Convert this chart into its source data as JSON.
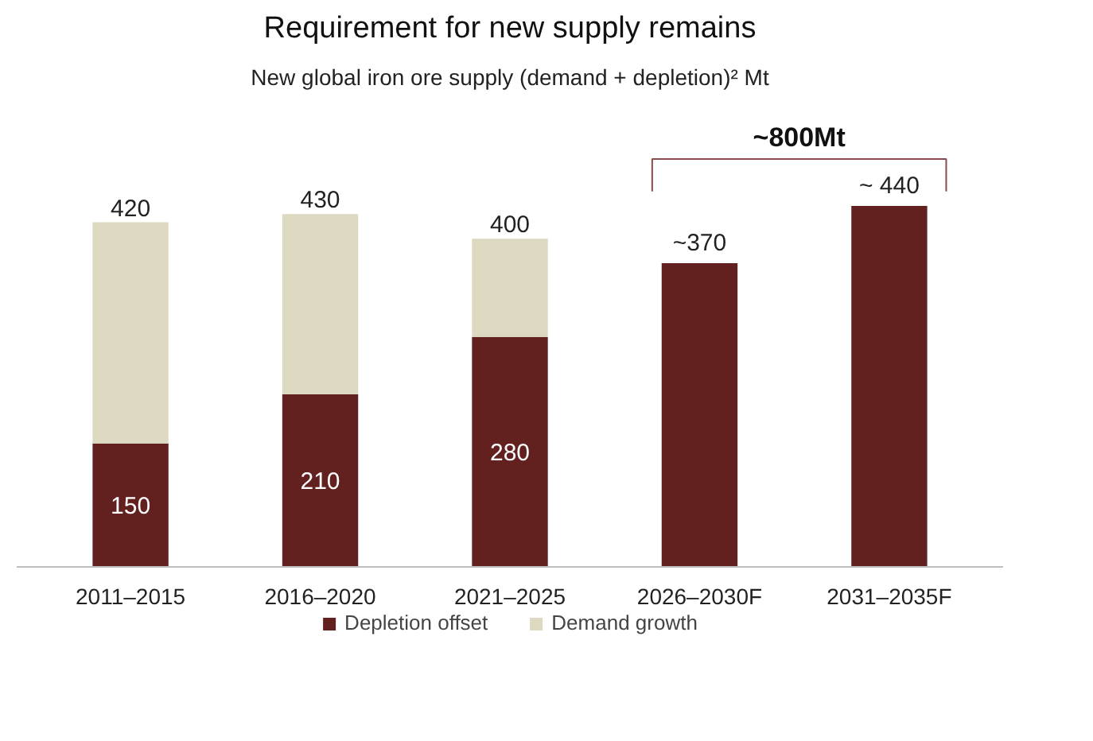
{
  "chart_data": {
    "type": "bar",
    "stacked": true,
    "title": "Requirement for new supply remains",
    "subtitle": "New global iron ore supply (demand + depletion)² Mt",
    "categories": [
      "2011–2015",
      "2016–2020",
      "2021–2025",
      "2026–2030F",
      "2031–2035F"
    ],
    "series": [
      {
        "name": "Depletion offset",
        "color": "#62201f",
        "values": [
          150,
          210,
          280,
          370,
          440
        ],
        "value_labels": [
          "150",
          "210",
          "280",
          null,
          null
        ]
      },
      {
        "name": "Demand growth",
        "color": "#ddd8c0",
        "values": [
          270,
          220,
          120,
          null,
          null
        ]
      }
    ],
    "totals": [
      "420",
      "430",
      "400",
      "~370",
      "~ 440"
    ],
    "annotations": [
      "~800Mt"
    ],
    "grid": false,
    "legend": "bottom",
    "tick_labels": "x"
  }
}
